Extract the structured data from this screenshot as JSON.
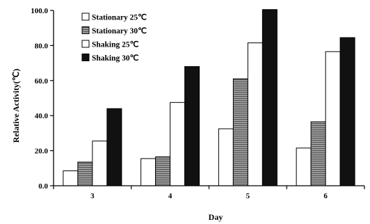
{
  "chart_data": {
    "type": "bar",
    "title": "",
    "xlabel": "Day",
    "ylabel": "Relative Activity(℃)",
    "categories": [
      "3",
      "4",
      "5",
      "6"
    ],
    "ylim": [
      0,
      100
    ],
    "yticks": [
      "0.0",
      "20.0",
      "40.0",
      "60.0",
      "80.0",
      "100.0"
    ],
    "grid": false,
    "legend_position": "top-left",
    "series": [
      {
        "name": "Stationary 25℃",
        "values": [
          8.5,
          15.5,
          32.5,
          21.5
        ],
        "fill": "#ffffff",
        "pattern": "none"
      },
      {
        "name": "Stationary 30℃",
        "values": [
          13.5,
          16.5,
          61.0,
          36.5
        ],
        "fill": "#9a9a9a",
        "pattern": "horizontal-hatch"
      },
      {
        "name": "Shaking 25℃",
        "values": [
          25.5,
          47.5,
          81.5,
          76.5
        ],
        "fill": "#ffffff",
        "pattern": "none"
      },
      {
        "name": "Shaking 30℃",
        "values": [
          44.0,
          68.0,
          100.5,
          84.5
        ],
        "fill": "#111111",
        "pattern": "none"
      }
    ]
  }
}
